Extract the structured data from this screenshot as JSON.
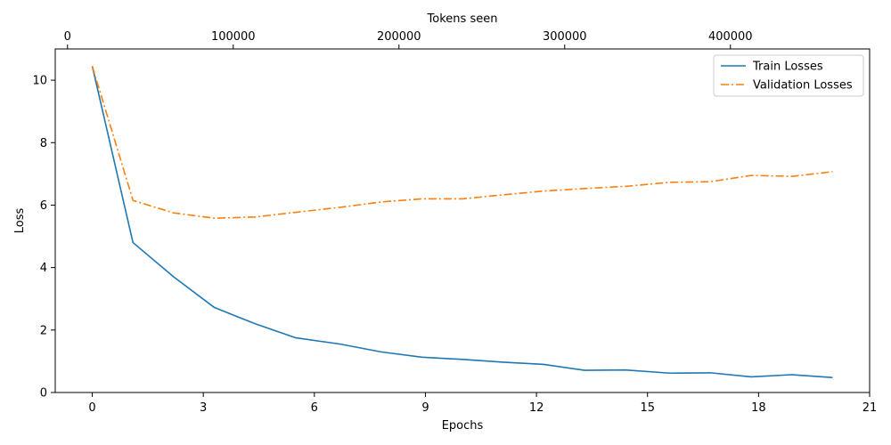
{
  "chart_data": {
    "type": "line",
    "xlabel": "Epochs",
    "ylabel": "Loss",
    "secondary_xlabel": "Tokens seen",
    "xlim": [
      -1,
      21
    ],
    "ylim": [
      0,
      11
    ],
    "secondary_xlim": [
      -7400,
      484000
    ],
    "x_ticks": [
      "0",
      "3",
      "6",
      "9",
      "12",
      "15",
      "18",
      "21"
    ],
    "y_ticks": [
      "0",
      "2",
      "4",
      "6",
      "8",
      "10"
    ],
    "secondary_x_ticks": [
      "0",
      "100000",
      "200000",
      "300000",
      "400000"
    ],
    "legend_position": "top-right",
    "series": [
      {
        "name": "Train Losses",
        "color": "#1f77b4",
        "style": "solid",
        "x": [
          0,
          1.1,
          2.2,
          3.3,
          4.4,
          5.5,
          6.7,
          7.8,
          8.9,
          10.0,
          11.1,
          12.2,
          13.3,
          14.4,
          15.6,
          16.7,
          17.8,
          18.9,
          20.0
        ],
        "values": [
          10.45,
          4.8,
          3.7,
          2.72,
          2.2,
          1.75,
          1.55,
          1.3,
          1.13,
          1.06,
          0.97,
          0.9,
          0.71,
          0.72,
          0.62,
          0.63,
          0.5,
          0.57,
          0.48
        ]
      },
      {
        "name": "Validation Losses",
        "color": "#ff7f0e",
        "style": "dashdot",
        "x": [
          0,
          1.1,
          2.2,
          3.3,
          4.4,
          5.5,
          6.7,
          7.8,
          8.9,
          10.0,
          11.1,
          12.2,
          13.3,
          14.4,
          15.6,
          16.7,
          17.8,
          18.9,
          20.0
        ],
        "values": [
          10.45,
          6.15,
          5.75,
          5.58,
          5.62,
          5.77,
          5.93,
          6.1,
          6.2,
          6.2,
          6.33,
          6.45,
          6.53,
          6.6,
          6.73,
          6.75,
          6.95,
          6.92,
          7.07
        ]
      }
    ]
  }
}
